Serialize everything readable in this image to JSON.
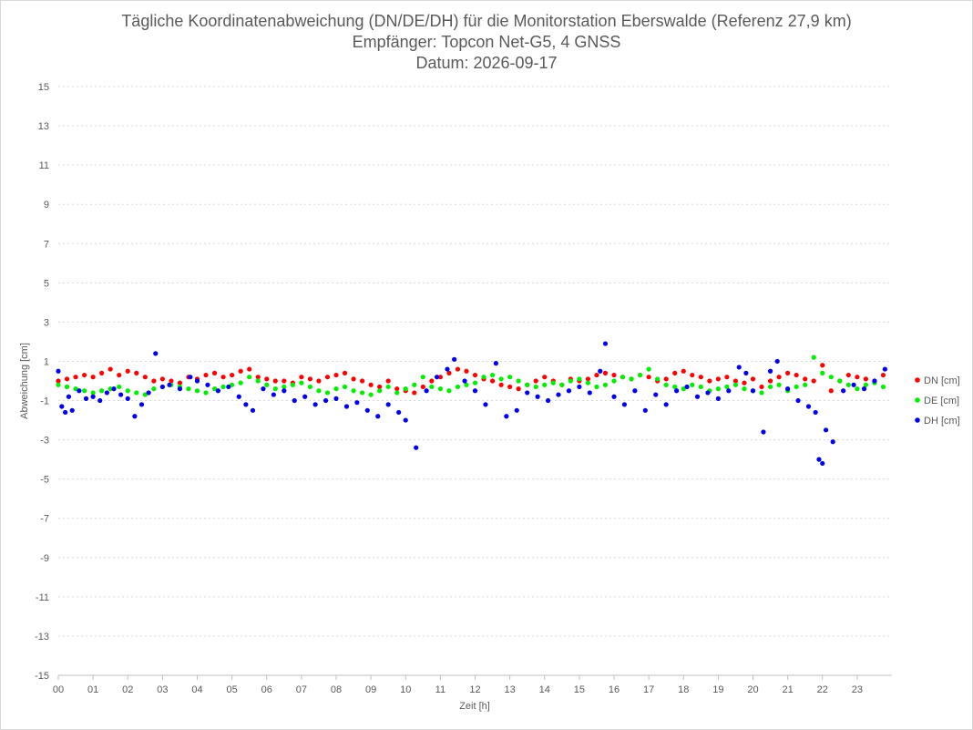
{
  "chart_data": {
    "type": "scatter",
    "title": "Tägliche Koordinatenabweichung (DN/DE/DH) für die Monitorstation Eberswalde (Referenz 27,9 km)",
    "subtitle": "Empfänger: Topcon Net-G5, 4 GNSS",
    "subtitle2": "Datum: 2026-09-17",
    "xlabel": "Zeit [h]",
    "ylabel": "Abweichung [cm]",
    "xlim": [
      0,
      24
    ],
    "ylim": [
      -15,
      15
    ],
    "x_ticks": [
      "00",
      "01",
      "02",
      "03",
      "04",
      "05",
      "06",
      "07",
      "08",
      "09",
      "10",
      "11",
      "12",
      "13",
      "14",
      "15",
      "16",
      "17",
      "18",
      "19",
      "20",
      "21",
      "22",
      "23"
    ],
    "y_ticks": [
      "15",
      "13",
      "11",
      "9",
      "7",
      "5",
      "3",
      "1",
      "-1",
      "-3",
      "-5",
      "-7",
      "-9",
      "-11",
      "-13",
      "-15"
    ],
    "grid": "horizontal",
    "legend_position": "right",
    "series": [
      {
        "name": "DN [cm]",
        "color": "#ff0000",
        "x": [
          0.0,
          0.25,
          0.5,
          0.75,
          1.0,
          1.25,
          1.5,
          1.75,
          2.0,
          2.25,
          2.5,
          2.75,
          3.0,
          3.25,
          3.5,
          3.75,
          4.0,
          4.25,
          4.5,
          4.75,
          5.0,
          5.25,
          5.5,
          5.75,
          6.0,
          6.25,
          6.5,
          6.75,
          7.0,
          7.25,
          7.5,
          7.75,
          8.0,
          8.25,
          8.5,
          8.75,
          9.0,
          9.25,
          9.5,
          9.75,
          10.0,
          10.25,
          10.5,
          10.75,
          11.0,
          11.25,
          11.5,
          11.75,
          12.0,
          12.25,
          12.5,
          12.75,
          13.0,
          13.25,
          13.5,
          13.75,
          14.0,
          14.25,
          14.5,
          14.75,
          15.0,
          15.25,
          15.5,
          15.75,
          16.0,
          16.25,
          16.5,
          16.75,
          17.0,
          17.25,
          17.5,
          17.75,
          18.0,
          18.25,
          18.5,
          18.75,
          19.0,
          19.25,
          19.5,
          19.75,
          20.0,
          20.25,
          20.5,
          20.75,
          21.0,
          21.25,
          21.5,
          21.75,
          22.0,
          22.25,
          22.5,
          22.75,
          23.0,
          23.25,
          23.5,
          23.75
        ],
        "y": [
          0.0,
          0.1,
          0.2,
          0.3,
          0.2,
          0.4,
          0.6,
          0.3,
          0.5,
          0.4,
          0.2,
          0.0,
          0.1,
          0.0,
          -0.1,
          0.2,
          0.1,
          0.3,
          0.4,
          0.2,
          0.3,
          0.5,
          0.6,
          0.2,
          0.1,
          0.0,
          0.0,
          -0.1,
          0.2,
          0.1,
          0.0,
          0.2,
          0.3,
          0.4,
          0.1,
          0.0,
          -0.2,
          -0.3,
          0.0,
          -0.4,
          -0.5,
          -0.6,
          -0.3,
          0.0,
          0.2,
          0.4,
          0.6,
          0.5,
          0.3,
          0.1,
          0.0,
          -0.2,
          -0.3,
          -0.4,
          -0.2,
          0.0,
          0.2,
          0.0,
          -0.2,
          0.1,
          0.0,
          0.1,
          0.3,
          0.4,
          0.3,
          0.2,
          0.1,
          0.3,
          0.2,
          0.0,
          0.1,
          0.4,
          0.5,
          0.3,
          0.2,
          0.0,
          0.1,
          0.2,
          0.0,
          -0.1,
          0.1,
          -0.3,
          0.0,
          0.2,
          0.4,
          0.3,
          0.1,
          0.0,
          0.8,
          -0.5,
          0.0,
          0.3,
          0.2,
          0.1,
          0.0,
          0.3
        ]
      },
      {
        "name": "DE [cm]",
        "color": "#00ee00",
        "x": [
          0.0,
          0.25,
          0.5,
          0.75,
          1.0,
          1.25,
          1.5,
          1.75,
          2.0,
          2.25,
          2.5,
          2.75,
          3.0,
          3.25,
          3.5,
          3.75,
          4.0,
          4.25,
          4.5,
          4.75,
          5.0,
          5.25,
          5.5,
          5.75,
          6.0,
          6.25,
          6.5,
          6.75,
          7.0,
          7.25,
          7.5,
          7.75,
          8.0,
          8.25,
          8.5,
          8.75,
          9.0,
          9.25,
          9.5,
          9.75,
          10.0,
          10.25,
          10.5,
          10.75,
          11.0,
          11.25,
          11.5,
          11.75,
          12.0,
          12.25,
          12.5,
          12.75,
          13.0,
          13.25,
          13.5,
          13.75,
          14.0,
          14.25,
          14.5,
          14.75,
          15.0,
          15.25,
          15.5,
          15.75,
          16.0,
          16.25,
          16.5,
          16.75,
          17.0,
          17.25,
          17.5,
          17.75,
          18.0,
          18.25,
          18.5,
          18.75,
          19.0,
          19.25,
          19.5,
          19.75,
          20.0,
          20.25,
          20.5,
          20.75,
          21.0,
          21.25,
          21.5,
          21.75,
          22.0,
          22.25,
          22.5,
          22.75,
          23.0,
          23.25,
          23.5,
          23.75
        ],
        "y": [
          -0.2,
          -0.3,
          -0.4,
          -0.5,
          -0.6,
          -0.5,
          -0.4,
          -0.3,
          -0.5,
          -0.6,
          -0.7,
          -0.4,
          -0.3,
          -0.2,
          -0.3,
          -0.4,
          -0.5,
          -0.6,
          -0.4,
          -0.3,
          -0.2,
          -0.1,
          0.2,
          0.0,
          -0.2,
          -0.4,
          -0.3,
          -0.2,
          -0.1,
          -0.3,
          -0.5,
          -0.6,
          -0.4,
          -0.3,
          -0.5,
          -0.6,
          -0.7,
          -0.5,
          -0.3,
          -0.6,
          -0.4,
          -0.2,
          0.2,
          -0.3,
          -0.4,
          -0.5,
          -0.3,
          -0.2,
          -0.1,
          0.2,
          0.3,
          0.1,
          0.2,
          0.0,
          -0.2,
          -0.3,
          -0.2,
          -0.1,
          -0.2,
          0.0,
          0.1,
          -0.1,
          -0.3,
          -0.2,
          0.0,
          0.2,
          0.1,
          0.3,
          0.6,
          0.1,
          -0.2,
          -0.3,
          -0.4,
          -0.2,
          -0.3,
          -0.5,
          -0.4,
          -0.3,
          -0.2,
          -0.4,
          -0.5,
          -0.6,
          -0.3,
          -0.2,
          -0.5,
          -0.3,
          -0.2,
          1.2,
          0.4,
          0.2,
          0.0,
          -0.2,
          -0.4,
          -0.2,
          -0.1,
          -0.3
        ]
      },
      {
        "name": "DH [cm]",
        "color": "#0000ee",
        "x": [
          0.0,
          0.1,
          0.2,
          0.3,
          0.4,
          0.6,
          0.8,
          1.0,
          1.2,
          1.4,
          1.6,
          1.8,
          2.0,
          2.2,
          2.4,
          2.6,
          2.8,
          3.0,
          3.2,
          3.5,
          3.8,
          4.0,
          4.3,
          4.6,
          4.9,
          5.2,
          5.4,
          5.6,
          5.9,
          6.2,
          6.5,
          6.8,
          7.1,
          7.4,
          7.7,
          8.0,
          8.3,
          8.6,
          8.9,
          9.2,
          9.5,
          9.8,
          10.0,
          10.3,
          10.6,
          10.9,
          11.2,
          11.4,
          11.7,
          12.0,
          12.3,
          12.6,
          12.9,
          13.2,
          13.5,
          13.8,
          14.1,
          14.4,
          14.7,
          15.0,
          15.3,
          15.6,
          15.75,
          16.0,
          16.3,
          16.6,
          16.9,
          17.2,
          17.5,
          17.8,
          18.1,
          18.4,
          18.7,
          19.0,
          19.3,
          19.6,
          19.8,
          20.0,
          20.3,
          20.5,
          20.7,
          21.0,
          21.3,
          21.6,
          21.8,
          21.9,
          22.0,
          22.1,
          22.3,
          22.6,
          22.9,
          23.2,
          23.5,
          23.8
        ],
        "y": [
          0.5,
          -1.3,
          -1.6,
          -0.8,
          -1.5,
          -0.5,
          -0.9,
          -0.8,
          -1.0,
          -0.6,
          -0.4,
          -0.7,
          -0.9,
          -1.8,
          -1.2,
          -0.6,
          1.4,
          -0.3,
          -0.2,
          -0.4,
          0.2,
          0.0,
          -0.2,
          -0.5,
          -0.3,
          -0.8,
          -1.2,
          -1.5,
          -0.4,
          -0.7,
          -0.5,
          -1.0,
          -0.8,
          -1.2,
          -1.0,
          -0.9,
          -1.3,
          -1.1,
          -1.5,
          -1.8,
          -1.2,
          -1.6,
          -2.0,
          -3.4,
          -0.5,
          0.2,
          0.6,
          1.1,
          0.0,
          -0.5,
          -1.2,
          0.9,
          -1.8,
          -1.5,
          -0.6,
          -0.8,
          -1.0,
          -0.7,
          -0.5,
          -0.3,
          -0.6,
          0.5,
          1.9,
          -0.8,
          -1.2,
          -0.5,
          -1.5,
          -0.7,
          -1.2,
          -0.5,
          -0.3,
          -0.8,
          -0.6,
          -0.9,
          -0.5,
          0.7,
          0.4,
          -0.5,
          -2.6,
          0.5,
          1.0,
          -0.4,
          -1.0,
          -1.3,
          -1.6,
          -4.0,
          -4.2,
          -2.5,
          -3.1,
          -0.5,
          -0.2,
          -0.4,
          0.0,
          0.6
        ]
      }
    ]
  }
}
